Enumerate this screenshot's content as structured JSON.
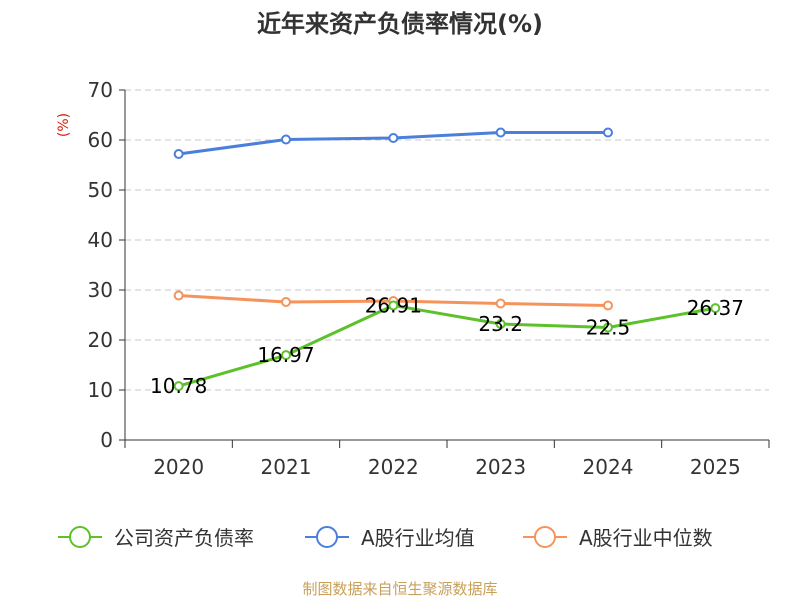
{
  "chart_data": {
    "type": "line",
    "title": "近年来资产负债率情况(%)",
    "ylabel": "(%)",
    "xlabel": "",
    "ylim": [
      0,
      70
    ],
    "yticks": [
      0,
      10,
      20,
      30,
      40,
      50,
      60,
      70
    ],
    "categories": [
      "2020",
      "2021",
      "2022",
      "2023",
      "2024",
      "2025"
    ],
    "grid": true,
    "legend_position": "bottom",
    "series": [
      {
        "name": "公司资产负债率",
        "color": "#5cc12a",
        "values": [
          10.78,
          16.97,
          26.91,
          23.2,
          22.5,
          26.37
        ],
        "labels": [
          "10.78",
          "16.97",
          "26.91",
          "23.2",
          "22.5",
          "26.37"
        ]
      },
      {
        "name": "A股行业均值",
        "color": "#4a7fdc",
        "values": [
          57.2,
          60.1,
          60.4,
          61.5,
          61.5,
          null
        ]
      },
      {
        "name": "A股行业中位数",
        "color": "#f5935a",
        "values": [
          28.9,
          27.6,
          27.8,
          27.3,
          26.9,
          null
        ]
      }
    ],
    "source": "制图数据来自恒生聚源数据库"
  }
}
